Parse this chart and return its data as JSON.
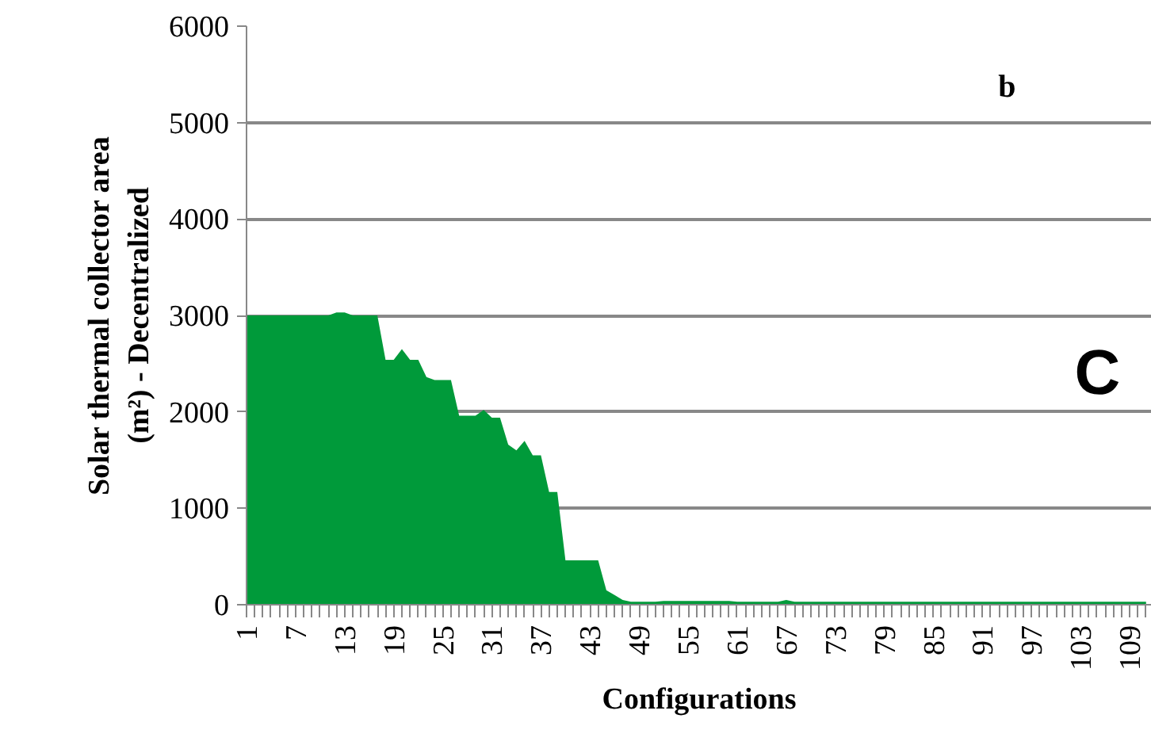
{
  "chart_data": {
    "type": "area",
    "xlabel": "Configurations",
    "ylabel": "Solar thermal collector area\n(m²) - Decentralized",
    "annotations": [
      "b",
      "C"
    ],
    "categories": [
      "1",
      null,
      null,
      null,
      null,
      null,
      "7",
      null,
      null,
      null,
      null,
      null,
      "13",
      null,
      null,
      null,
      null,
      null,
      "19",
      null,
      null,
      null,
      null,
      null,
      "25",
      null,
      null,
      null,
      null,
      null,
      "31",
      null,
      null,
      null,
      null,
      null,
      "37",
      null,
      null,
      null,
      null,
      null,
      "43",
      null,
      null,
      null,
      null,
      null,
      "49",
      null,
      null,
      null,
      null,
      null,
      "55",
      null,
      null,
      null,
      null,
      null,
      "61",
      null,
      null,
      null,
      null,
      null,
      "67",
      null,
      null,
      null,
      null,
      null,
      "73",
      null,
      null,
      null,
      null,
      null,
      "79",
      null,
      null,
      null,
      null,
      null,
      "85",
      null,
      null,
      null,
      null,
      null,
      "91",
      null,
      null,
      null,
      null,
      null,
      "97",
      null,
      null,
      null,
      null,
      null,
      "103",
      null,
      null,
      null,
      null,
      null,
      "109",
      null,
      null
    ],
    "values": [
      3000,
      3000,
      3000,
      3000,
      3000,
      3000,
      3000,
      3000,
      3000,
      3000,
      3000,
      3030,
      3030,
      3000,
      3000,
      3000,
      3000,
      2540,
      2540,
      2650,
      2540,
      2540,
      2360,
      2330,
      2330,
      2330,
      1960,
      1960,
      1960,
      2020,
      1940,
      1940,
      1660,
      1600,
      1700,
      1550,
      1550,
      1170,
      1170,
      460,
      460,
      460,
      460,
      460,
      150,
      100,
      50,
      30,
      30,
      30,
      30,
      40,
      40,
      40,
      40,
      40,
      40,
      40,
      40,
      40,
      30,
      30,
      30,
      30,
      30,
      30,
      50,
      30,
      30,
      30,
      30,
      30,
      30,
      30,
      30,
      30,
      30,
      30,
      30,
      30,
      30,
      30,
      30,
      30,
      30,
      30,
      30,
      30,
      30,
      30,
      30,
      30,
      30,
      30,
      30,
      30,
      30,
      30,
      30,
      30,
      30,
      30,
      30,
      30,
      30,
      30,
      30,
      30,
      30,
      30,
      30
    ],
    "color": "#009a3a",
    "ylim": [
      0,
      6000
    ],
    "yticks": [
      0,
      1000,
      2000,
      3000,
      4000,
      5000,
      6000
    ],
    "grid": "y"
  }
}
